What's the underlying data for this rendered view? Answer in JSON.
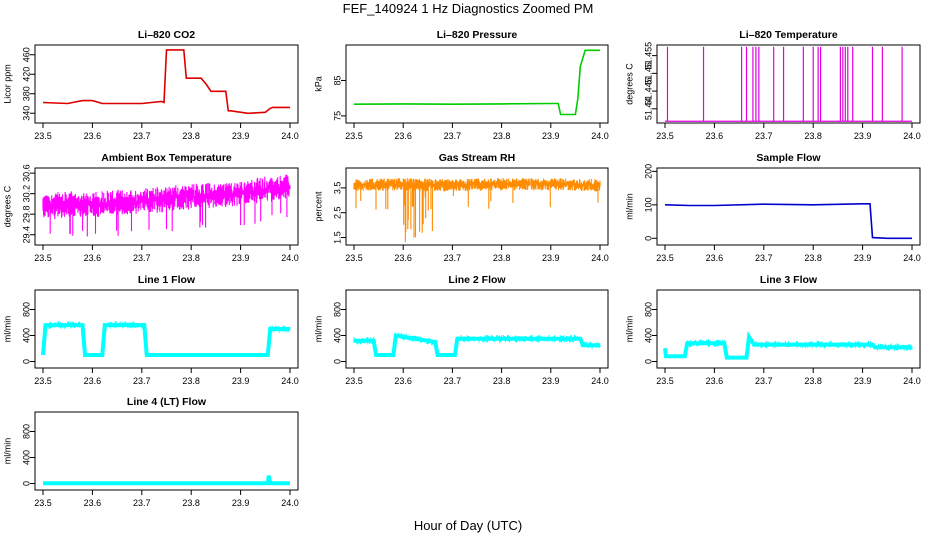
{
  "title": "FEF_140924  1 Hz Diagnostics Zoomed PM",
  "xlabel": "Hour of Day (UTC)",
  "chart_data": [
    {
      "type": "line",
      "title": "Li–820 CO2",
      "ylabel": "Licor ppm",
      "color": "#dd0000",
      "xlim": [
        23.5,
        24.0
      ],
      "xticks": [
        "23.5",
        "23.6",
        "23.7",
        "23.8",
        "23.9",
        "24.0"
      ],
      "ylim": [
        320,
        480
      ],
      "yticks": [
        340,
        380,
        420,
        460
      ],
      "series": [
        {
          "name": "CO2",
          "x": [
            23.5,
            23.55,
            23.58,
            23.6,
            23.62,
            23.7,
            23.74,
            23.745,
            23.75,
            23.755,
            23.785,
            23.79,
            23.82,
            23.83,
            23.84,
            23.87,
            23.875,
            23.88,
            23.915,
            23.95,
            23.96,
            23.965,
            24.0
          ],
          "y": [
            362,
            360,
            366,
            366,
            360,
            360,
            364,
            362,
            470,
            470,
            470,
            412,
            412,
            400,
            385,
            385,
            345,
            345,
            340,
            342,
            350,
            352,
            352
          ]
        }
      ]
    },
    {
      "type": "line",
      "title": "Li–820 Pressure",
      "ylabel": "kPa",
      "color": "#00cc00",
      "xlim": [
        23.5,
        24.0
      ],
      "xticks": [
        "23.5",
        "23.6",
        "23.7",
        "23.8",
        "23.9",
        "24.0"
      ],
      "ylim": [
        73,
        95
      ],
      "yticks": [
        75,
        85
      ],
      "series": [
        {
          "name": "Pressure",
          "x": [
            23.5,
            23.6,
            23.7,
            23.8,
            23.9,
            23.915,
            23.92,
            23.95,
            23.955,
            23.96,
            23.97,
            24.0
          ],
          "y": [
            78.3,
            78.4,
            78.3,
            78.4,
            78.5,
            78.5,
            75.4,
            75.4,
            80,
            89,
            93.5,
            93.5
          ]
        }
      ]
    },
    {
      "type": "line",
      "title": "Li–820 Temperature",
      "ylabel": "degrees C",
      "color": "#e000e0",
      "xlim": [
        23.5,
        24.0
      ],
      "xticks": [
        "23.5",
        "23.6",
        "23.7",
        "23.8",
        "23.9",
        "24.0"
      ],
      "ylim": [
        51.436,
        51.458
      ],
      "yticks": [
        51.44,
        51.445,
        51.45,
        51.455
      ],
      "spikes_x": [
        23.505,
        23.578,
        23.655,
        23.665,
        23.678,
        23.684,
        23.69,
        23.72,
        23.74,
        23.78,
        23.8,
        23.81,
        23.815,
        23.855,
        23.86,
        23.865,
        23.87,
        23.88,
        23.92,
        23.94,
        23.98
      ],
      "series": [
        {
          "name": "Temperature",
          "base": 51.4365,
          "peak": 51.4575
        }
      ]
    },
    {
      "type": "line",
      "title": "Ambient Box Temperature",
      "ylabel": "degrees C",
      "color": "#ff00ff",
      "xlim": [
        23.5,
        24.0
      ],
      "xticks": [
        "23.5",
        "23.6",
        "23.7",
        "23.8",
        "23.9",
        "24.0"
      ],
      "ylim": [
        29.2,
        30.7
      ],
      "yticks": [
        29.4,
        29.8,
        30.2,
        30.6
      ],
      "series": [
        {
          "name": "Ambient",
          "x": [
            23.5,
            23.6,
            23.7,
            23.8,
            23.9,
            24.0
          ],
          "y": [
            29.95,
            30.0,
            30.05,
            30.15,
            30.2,
            30.35
          ]
        }
      ]
    },
    {
      "type": "line",
      "title": "Gas Stream RH",
      "ylabel": "percent",
      "color": "#ff8c00",
      "xlim": [
        23.5,
        24.0
      ],
      "xticks": [
        "23.5",
        "23.6",
        "23.7",
        "23.8",
        "23.9",
        "24.0"
      ],
      "ylim": [
        1.2,
        4.3
      ],
      "yticks": [
        1.5,
        2.5,
        3.5
      ],
      "series": [
        {
          "name": "RH",
          "x": [
            23.5,
            23.6,
            23.7,
            23.8,
            23.9,
            24.0
          ],
          "y": [
            3.6,
            3.65,
            3.6,
            3.65,
            3.65,
            3.6
          ]
        }
      ]
    },
    {
      "type": "line",
      "title": "Sample Flow",
      "ylabel": "ml/min",
      "color": "#0000cc",
      "xlim": [
        23.5,
        24.0
      ],
      "xticks": [
        "23.5",
        "23.6",
        "23.7",
        "23.8",
        "23.9",
        "24.0"
      ],
      "ylim": [
        -20,
        210
      ],
      "yticks": [
        0,
        100,
        200
      ],
      "series": [
        {
          "name": "Sample",
          "x": [
            23.5,
            23.55,
            23.6,
            23.7,
            23.8,
            23.9,
            23.915,
            23.92,
            23.95,
            24.0
          ],
          "y": [
            100,
            98,
            98,
            102,
            100,
            103,
            103,
            2,
            0,
            0
          ]
        }
      ]
    },
    {
      "type": "line",
      "title": "Line 1 Flow",
      "ylabel": "ml/min",
      "color": "#00ffff",
      "xlim": [
        23.5,
        24.0
      ],
      "xticks": [
        "23.5",
        "23.6",
        "23.7",
        "23.8",
        "23.9",
        "24.0"
      ],
      "ylim": [
        -100,
        1100
      ],
      "yticks": [
        0,
        400,
        800
      ],
      "series": [
        {
          "name": "Line1",
          "x": [
            23.5,
            23.505,
            23.58,
            23.585,
            23.62,
            23.625,
            23.705,
            23.71,
            23.955,
            23.96,
            24.0
          ],
          "y": [
            100,
            560,
            560,
            100,
            100,
            560,
            560,
            100,
            100,
            500,
            500
          ]
        }
      ]
    },
    {
      "type": "line",
      "title": "Line 2 Flow",
      "ylabel": "ml/min",
      "color": "#00ffff",
      "xlim": [
        23.5,
        24.0
      ],
      "xticks": [
        "23.5",
        "23.6",
        "23.7",
        "23.8",
        "23.9",
        "24.0"
      ],
      "ylim": [
        -100,
        1100
      ],
      "yticks": [
        0,
        400,
        800
      ],
      "series": [
        {
          "name": "Line2",
          "x": [
            23.5,
            23.54,
            23.545,
            23.58,
            23.585,
            23.665,
            23.67,
            23.705,
            23.71,
            23.96,
            23.965,
            24.0
          ],
          "y": [
            320,
            320,
            100,
            100,
            400,
            300,
            100,
            100,
            350,
            350,
            250,
            250
          ]
        }
      ]
    },
    {
      "type": "line",
      "title": "Line 3 Flow",
      "ylabel": "ml/min",
      "color": "#00ffff",
      "xlim": [
        23.5,
        24.0
      ],
      "xticks": [
        "23.5",
        "23.6",
        "23.7",
        "23.8",
        "23.9",
        "24.0"
      ],
      "ylim": [
        -100,
        1100
      ],
      "yticks": [
        0,
        400,
        800
      ],
      "series": [
        {
          "name": "Line3",
          "x": [
            23.5,
            23.502,
            23.505,
            23.54,
            23.545,
            23.62,
            23.625,
            23.665,
            23.67,
            23.68,
            23.92,
            23.925,
            24.0
          ],
          "y": [
            200,
            80,
            80,
            80,
            280,
            280,
            60,
            60,
            380,
            260,
            260,
            220,
            220
          ]
        }
      ]
    },
    {
      "type": "line",
      "title": "Line 4 (LT) Flow",
      "ylabel": "ml/min",
      "color": "#00ffff",
      "xlim": [
        23.5,
        24.0
      ],
      "xticks": [
        "23.5",
        "23.6",
        "23.7",
        "23.8",
        "23.9",
        "24.0"
      ],
      "ylim": [
        -100,
        1100
      ],
      "yticks": [
        0,
        400,
        800
      ],
      "series": [
        {
          "name": "Line4",
          "x": [
            23.5,
            23.955,
            23.957,
            23.96,
            24.0
          ],
          "y": [
            5,
            5,
            120,
            5,
            5
          ]
        }
      ]
    }
  ]
}
